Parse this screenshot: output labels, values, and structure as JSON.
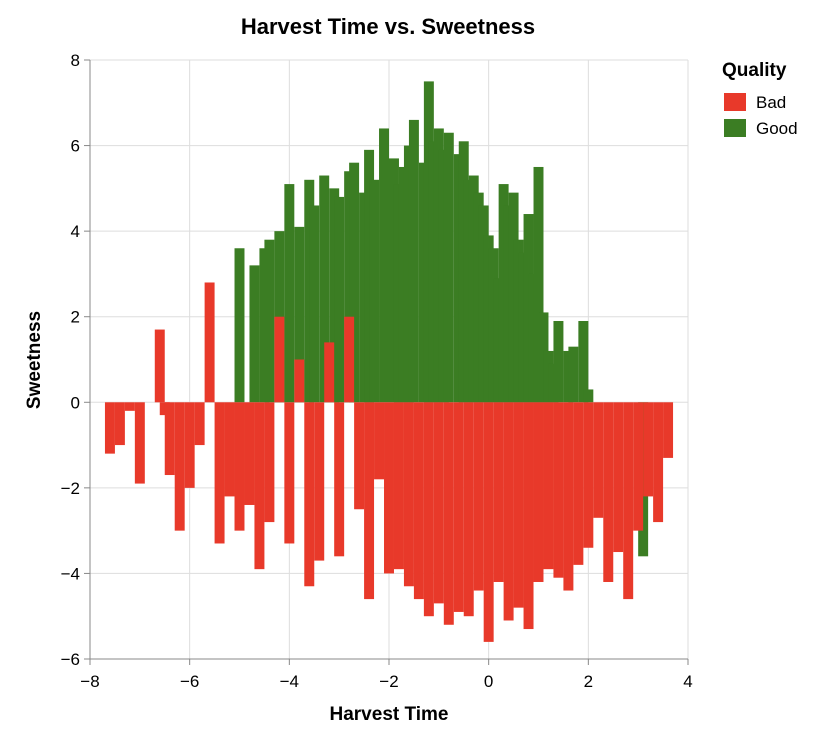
{
  "chart_data": {
    "type": "bar",
    "title": "Harvest Time vs. Sweetness",
    "xlabel": "Harvest Time",
    "ylabel": "Sweetness",
    "xlim": [
      -8,
      4
    ],
    "ylim": [
      -6,
      8
    ],
    "x_ticks": [
      -8,
      -6,
      -4,
      -2,
      0,
      2,
      4
    ],
    "x_tick_labels": [
      "−8",
      "−6",
      "−4",
      "−2",
      "0",
      "2",
      "4"
    ],
    "y_ticks": [
      -6,
      -4,
      -2,
      0,
      2,
      4,
      6,
      8
    ],
    "y_tick_labels": [
      "−6",
      "−4",
      "−2",
      "0",
      "2",
      "4",
      "6",
      "8"
    ],
    "grid": true,
    "legend": {
      "title": "Quality",
      "placement": "top-right",
      "entries": [
        {
          "label": "Bad",
          "color": "#e8392a"
        },
        {
          "label": "Good",
          "color": "#3b7d23"
        }
      ]
    },
    "series": [
      {
        "name": "Good",
        "color": "#3b7d23",
        "x": [
          -5.0,
          -4.7,
          -4.5,
          -4.4,
          -4.2,
          -4.0,
          -3.8,
          -3.6,
          -3.5,
          -3.3,
          -3.1,
          -3.0,
          -2.8,
          -2.7,
          -2.5,
          -2.4,
          -2.3,
          -2.1,
          -1.9,
          -1.8,
          -1.7,
          -1.6,
          -1.5,
          -1.3,
          -1.2,
          -1.1,
          -1.0,
          -0.9,
          -0.8,
          -0.6,
          -0.5,
          -0.4,
          -0.3,
          -0.2,
          -0.1,
          0.0,
          0.1,
          0.2,
          0.3,
          0.4,
          0.5,
          0.6,
          0.7,
          0.8,
          0.9,
          1.0,
          1.1,
          1.2,
          1.3,
          1.4,
          1.6,
          1.7,
          1.9,
          2.0,
          3.1
        ],
        "values": [
          3.6,
          3.2,
          3.6,
          3.8,
          4.0,
          5.1,
          4.1,
          5.2,
          4.6,
          5.3,
          5.0,
          4.8,
          5.4,
          5.6,
          4.9,
          5.9,
          5.2,
          6.4,
          5.7,
          5.1,
          5.5,
          6.0,
          6.6,
          5.6,
          7.5,
          6.1,
          6.4,
          5.9,
          6.3,
          5.8,
          6.1,
          5.2,
          5.3,
          4.9,
          4.6,
          3.9,
          3.6,
          2.9,
          5.1,
          4.6,
          4.9,
          3.8,
          3.5,
          4.4,
          3.0,
          5.5,
          2.1,
          1.2,
          0.9,
          1.9,
          1.2,
          1.3,
          1.9,
          0.3,
          -3.6
        ]
      },
      {
        "name": "Bad",
        "color": "#e8392a",
        "x": [
          -7.6,
          -7.4,
          -7.2,
          -7.0,
          -6.6,
          -6.5,
          -6.4,
          -6.2,
          -6.0,
          -5.8,
          -5.6,
          -5.4,
          -5.2,
          -5.0,
          -4.8,
          -4.6,
          -4.4,
          -4.2,
          -4.0,
          -3.8,
          -3.6,
          -3.4,
          -3.2,
          -3.0,
          -2.8,
          -2.6,
          -2.4,
          -2.2,
          -2.0,
          -1.8,
          -1.6,
          -1.4,
          -1.2,
          -1.0,
          -0.8,
          -0.6,
          -0.4,
          -0.2,
          0.0,
          0.2,
          0.4,
          0.6,
          0.8,
          1.0,
          1.2,
          1.4,
          1.6,
          1.8,
          2.0,
          2.2,
          2.4,
          2.6,
          2.8,
          3.0,
          3.2,
          3.4,
          3.6
        ],
        "values": [
          -1.2,
          -1.0,
          -0.2,
          -1.9,
          1.7,
          -0.3,
          -1.7,
          -3.0,
          -2.0,
          -1.0,
          2.8,
          -3.3,
          -2.2,
          -3.0,
          -2.4,
          -3.9,
          -2.8,
          2.0,
          -3.3,
          1.0,
          -4.3,
          -3.7,
          1.4,
          -3.6,
          2.0,
          -2.5,
          -4.6,
          -1.8,
          -4.0,
          -3.9,
          -4.3,
          -4.6,
          -5.0,
          -4.7,
          -5.2,
          -4.9,
          -5.0,
          -4.4,
          -5.6,
          -4.2,
          -5.1,
          -4.8,
          -5.3,
          -4.2,
          -3.9,
          -4.1,
          -4.4,
          -3.8,
          -3.4,
          -2.7,
          -4.2,
          -3.5,
          -4.6,
          -3.0,
          -2.2,
          -2.8,
          -1.3
        ]
      }
    ]
  }
}
